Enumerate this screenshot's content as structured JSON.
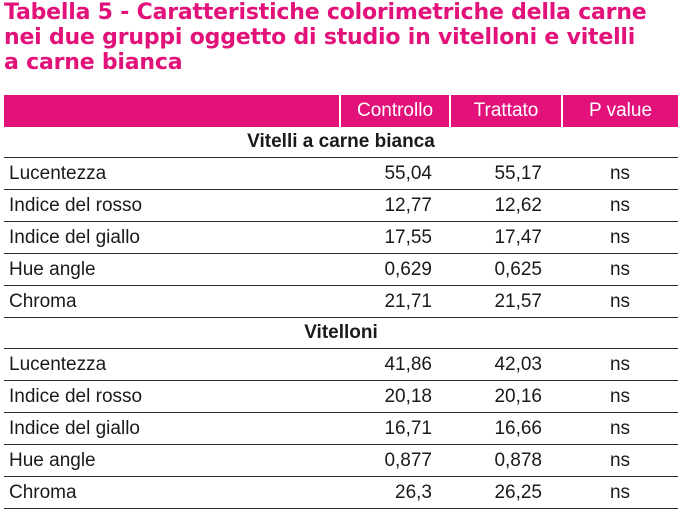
{
  "title": {
    "line1": "Tabella 5 - Caratteristiche colorimetriche della carne",
    "line2": "nei due gruppi oggetto di studio in vitelloni e vitelli",
    "line3": "a carne bianca"
  },
  "colors": {
    "accent": "#e2127a"
  },
  "table": {
    "headers": [
      "",
      "Controllo",
      "Trattato",
      "P value"
    ],
    "sections": [
      {
        "name": "Vitelli a carne bianca",
        "rows": [
          {
            "label": "Lucentezza",
            "controllo": "55,04",
            "trattato": "55,17",
            "p": "ns"
          },
          {
            "label": "Indice del rosso",
            "controllo": "12,77",
            "trattato": "12,62",
            "p": "ns"
          },
          {
            "label": "Indice del giallo",
            "controllo": "17,55",
            "trattato": "17,47",
            "p": "ns"
          },
          {
            "label": "Hue angle",
            "controllo": "0,629",
            "trattato": "0,625",
            "p": "ns"
          },
          {
            "label": "Chroma",
            "controllo": "21,71",
            "trattato": "21,57",
            "p": "ns"
          }
        ]
      },
      {
        "name": "Vitelloni",
        "rows": [
          {
            "label": "Lucentezza",
            "controllo": "41,86",
            "trattato": "42,03",
            "p": "ns"
          },
          {
            "label": "Indice del rosso",
            "controllo": "20,18",
            "trattato": "20,16",
            "p": "ns"
          },
          {
            "label": "Indice del giallo",
            "controllo": "16,71",
            "trattato": "16,66",
            "p": "ns"
          },
          {
            "label": "Hue angle",
            "controllo": "0,877",
            "trattato": "0,878",
            "p": "ns"
          },
          {
            "label": "Chroma",
            "controllo": "26,3",
            "trattato": "26,25",
            "p": "ns"
          }
        ]
      }
    ]
  }
}
